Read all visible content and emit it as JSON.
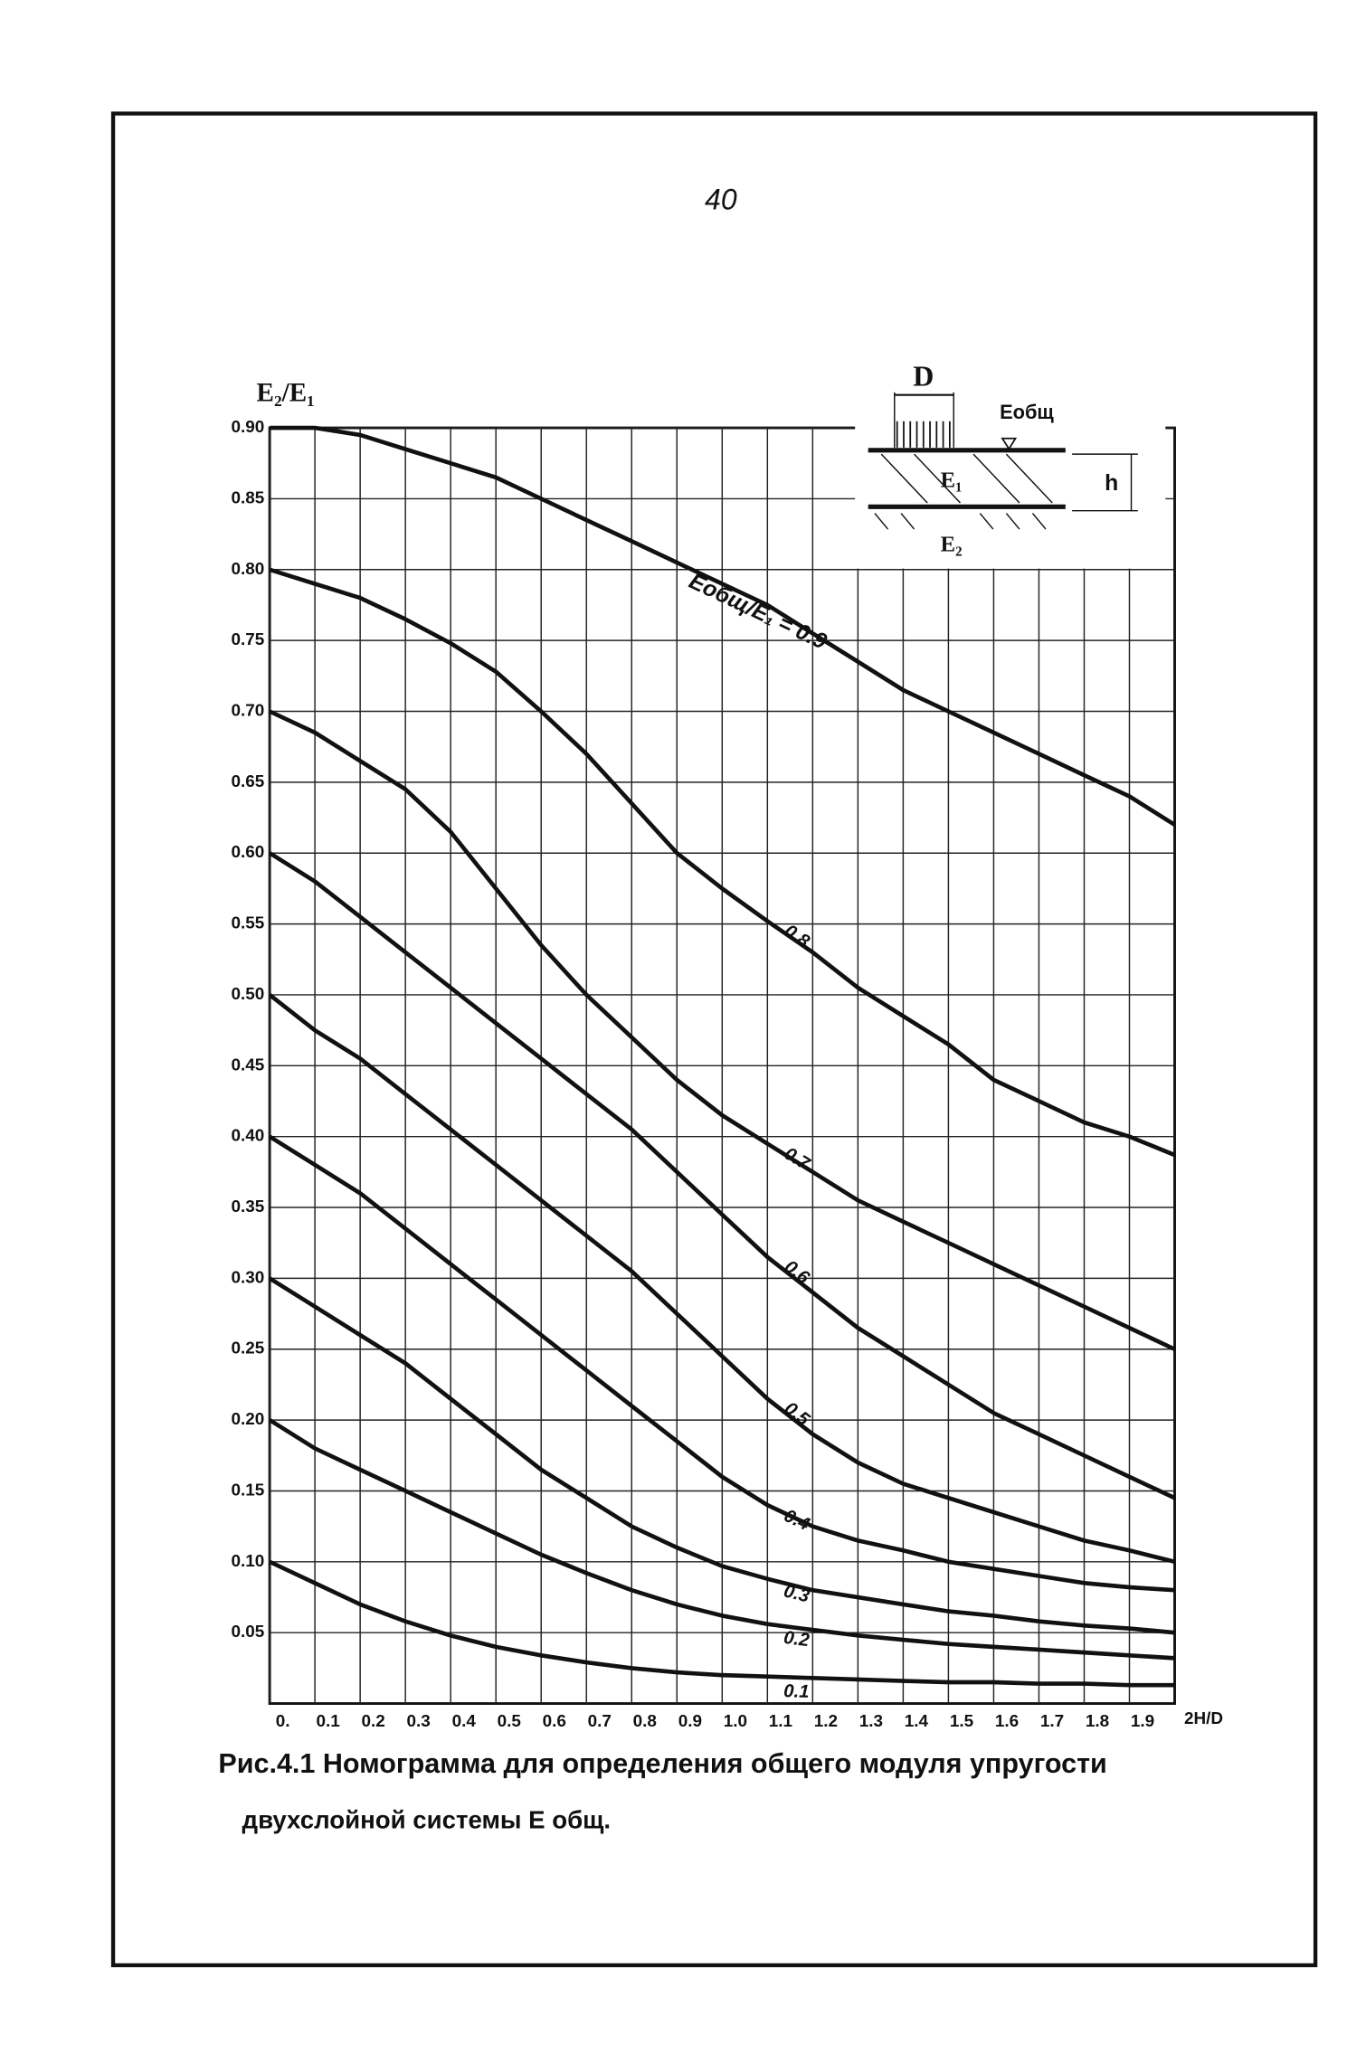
{
  "page_number": "40",
  "caption": [
    "Рис.4.1 Номограмма для определения общего модуля упругости",
    "двухслойной системы Е общ."
  ],
  "inset": {
    "width_label": "D",
    "modulus_label": "Eобщ",
    "layer1_label": "E₁",
    "layer2_label": "E₂",
    "thickness_label": "h"
  },
  "chart_data": {
    "type": "line",
    "ylabel": "E₂/E₁",
    "xlabel": "2H/D",
    "color": "#111111",
    "grid": true,
    "xlim": [
      0,
      2.0
    ],
    "ylim": [
      0,
      0.9
    ],
    "xticks": [
      {
        "value": 0,
        "label": "0."
      },
      0.1,
      0.2,
      0.3,
      0.4,
      0.5,
      0.6,
      0.7,
      0.8,
      0.9,
      {
        "value": 1.0,
        "label": "1.0"
      },
      1.1,
      1.2,
      1.3,
      1.4,
      1.5,
      1.6,
      1.7,
      1.8,
      1.9
    ],
    "yticks": [
      0.05,
      {
        "value": 0.1,
        "label": "0.10"
      },
      0.15,
      {
        "value": 0.2,
        "label": "0.20"
      },
      0.25,
      {
        "value": 0.3,
        "label": "0.30"
      },
      0.35,
      {
        "value": 0.4,
        "label": "0.40"
      },
      0.45,
      {
        "value": 0.5,
        "label": "0.50"
      },
      0.55,
      {
        "value": 0.6,
        "label": "0.60"
      },
      0.65,
      {
        "value": 0.7,
        "label": "0.70"
      },
      0.75,
      {
        "value": 0.8,
        "label": "0.80"
      },
      0.85,
      {
        "value": 0.9,
        "label": "0.90"
      }
    ],
    "x": [
      0,
      0.1,
      0.2,
      0.3,
      0.4,
      0.5,
      0.6,
      0.7,
      0.8,
      0.9,
      1.0,
      1.1,
      1.2,
      1.3,
      1.4,
      1.5,
      1.6,
      1.7,
      1.8,
      1.9,
      2.0
    ],
    "series": [
      {
        "name": "Eобщ/E₁ = 0.9",
        "values": [
          0.9,
          0.9,
          0.895,
          0.885,
          0.875,
          0.865,
          0.85,
          0.835,
          0.82,
          0.805,
          0.79,
          0.775,
          0.755,
          0.735,
          0.715,
          0.7,
          0.685,
          0.67,
          0.655,
          0.64,
          0.62
        ]
      },
      {
        "name": "0.8",
        "values": [
          0.8,
          0.79,
          0.78,
          0.765,
          0.748,
          0.728,
          0.7,
          0.67,
          0.635,
          0.6,
          0.575,
          0.552,
          0.53,
          0.505,
          0.485,
          0.465,
          0.44,
          0.425,
          0.41,
          0.4,
          0.387
        ]
      },
      {
        "name": "0.7",
        "values": [
          0.7,
          0.685,
          0.665,
          0.645,
          0.615,
          0.575,
          0.535,
          0.5,
          0.47,
          0.44,
          0.415,
          0.395,
          0.375,
          0.355,
          0.34,
          0.325,
          0.31,
          0.295,
          0.28,
          0.265,
          0.25
        ]
      },
      {
        "name": "0.6",
        "values": [
          0.6,
          0.58,
          0.555,
          0.53,
          0.505,
          0.48,
          0.455,
          0.43,
          0.405,
          0.375,
          0.345,
          0.315,
          0.29,
          0.265,
          0.245,
          0.225,
          0.205,
          0.19,
          0.175,
          0.16,
          0.145
        ]
      },
      {
        "name": "0.5",
        "values": [
          0.5,
          0.475,
          0.455,
          0.43,
          0.405,
          0.38,
          0.355,
          0.33,
          0.305,
          0.275,
          0.245,
          0.215,
          0.19,
          0.17,
          0.155,
          0.145,
          0.135,
          0.125,
          0.115,
          0.108,
          0.1
        ]
      },
      {
        "name": "0.4",
        "values": [
          0.4,
          0.38,
          0.36,
          0.335,
          0.31,
          0.285,
          0.26,
          0.235,
          0.21,
          0.185,
          0.16,
          0.14,
          0.125,
          0.115,
          0.108,
          0.1,
          0.095,
          0.09,
          0.085,
          0.082,
          0.08
        ]
      },
      {
        "name": "0.3",
        "values": [
          0.3,
          0.28,
          0.26,
          0.24,
          0.215,
          0.19,
          0.165,
          0.145,
          0.125,
          0.11,
          0.097,
          0.088,
          0.08,
          0.075,
          0.07,
          0.065,
          0.062,
          0.058,
          0.055,
          0.053,
          0.05
        ]
      },
      {
        "name": "0.2",
        "values": [
          0.2,
          0.18,
          0.165,
          0.15,
          0.135,
          0.12,
          0.105,
          0.092,
          0.08,
          0.07,
          0.062,
          0.056,
          0.052,
          0.048,
          0.045,
          0.042,
          0.04,
          0.038,
          0.036,
          0.034,
          0.032
        ]
      },
      {
        "name": "0.1",
        "values": [
          0.1,
          0.085,
          0.07,
          0.058,
          0.048,
          0.04,
          0.034,
          0.029,
          0.025,
          0.022,
          0.02,
          0.019,
          0.018,
          0.017,
          0.016,
          0.015,
          0.015,
          0.014,
          0.014,
          0.013,
          0.013
        ]
      }
    ]
  }
}
